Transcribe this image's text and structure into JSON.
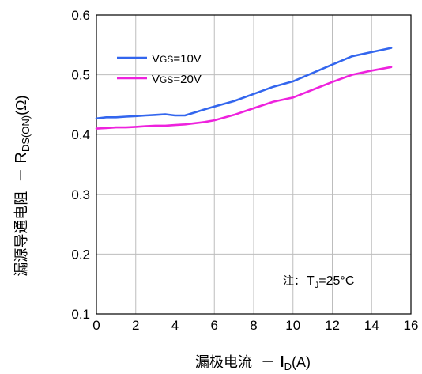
{
  "chart_data": {
    "type": "line",
    "xlabel": {
      "prefix": "漏极电流 ",
      "dash": "－",
      "symbol": "I",
      "sub": "D",
      "suffix": "(A)"
    },
    "ylabel": {
      "prefix": "漏源导通电阻 ",
      "dash": "－",
      "symbol": "R",
      "sub": "DS(ON)",
      "suffix": "(Ω)"
    },
    "xlim": [
      0,
      16
    ],
    "ylim": [
      0.1,
      0.6
    ],
    "x_ticks": [
      "0",
      "2",
      "4",
      "6",
      "8",
      "10",
      "12",
      "14",
      "16"
    ],
    "y_ticks": [
      "0.1",
      "0.2",
      "0.3",
      "0.4",
      "0.5",
      "0.6"
    ],
    "grid": true,
    "legend_position": "top-left",
    "annotation": {
      "prefix": "注：",
      "symbol": "T",
      "sub": "J",
      "suffix": "=25°C"
    },
    "series": [
      {
        "label_main": "V",
        "label_sub": "GS",
        "label_rest": "=10V",
        "color": "#3366ee",
        "x": [
          0,
          0.5,
          1,
          1.5,
          2,
          2.5,
          3,
          3.5,
          4,
          4.5,
          5,
          5.5,
          6,
          7,
          8,
          9,
          10,
          11,
          12,
          13,
          14,
          15
        ],
        "y": [
          0.427,
          0.429,
          0.429,
          0.43,
          0.431,
          0.432,
          0.433,
          0.434,
          0.432,
          0.432,
          0.437,
          0.442,
          0.447,
          0.456,
          0.468,
          0.48,
          0.489,
          0.503,
          0.517,
          0.531,
          0.538,
          0.545
        ]
      },
      {
        "label_main": "V",
        "label_sub": "GS",
        "label_rest": "=20V",
        "color": "#ee22dd",
        "x": [
          0,
          0.5,
          1,
          1.5,
          2,
          2.5,
          3,
          3.5,
          4,
          4.5,
          5,
          5.5,
          6,
          7,
          8,
          9,
          10,
          11,
          12,
          13,
          14,
          15
        ],
        "y": [
          0.41,
          0.411,
          0.412,
          0.412,
          0.413,
          0.414,
          0.415,
          0.415,
          0.416,
          0.417,
          0.419,
          0.421,
          0.424,
          0.433,
          0.444,
          0.455,
          0.462,
          0.475,
          0.488,
          0.5,
          0.507,
          0.513
        ]
      }
    ]
  }
}
